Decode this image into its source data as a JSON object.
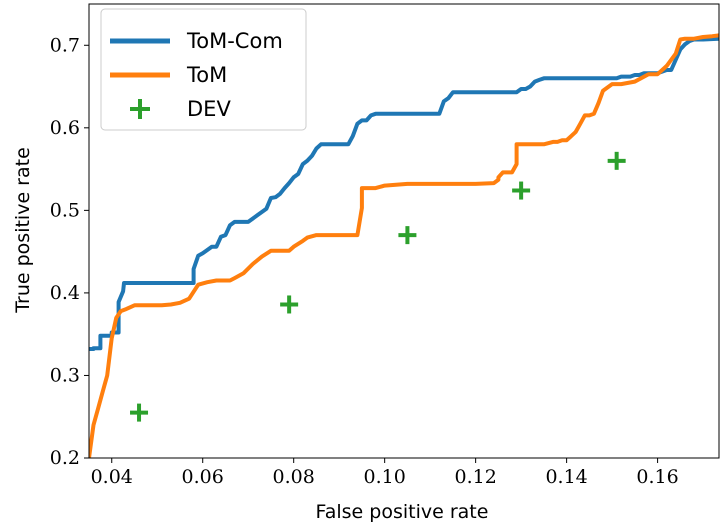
{
  "chart_data": {
    "type": "line",
    "xlabel": "False positive rate",
    "ylabel": "True positive rate",
    "xlim": [
      0.035,
      0.1735
    ],
    "ylim": [
      0.2,
      0.75
    ],
    "xticks": [
      0.04,
      0.06,
      0.08,
      0.1,
      0.12,
      0.14,
      0.16
    ],
    "xtick_labels": [
      "0.04",
      "0.06",
      "0.08",
      "0.10",
      "0.12",
      "0.14",
      "0.16"
    ],
    "yticks": [
      0.2,
      0.3,
      0.4,
      0.5,
      0.6,
      0.7
    ],
    "ytick_labels": [
      "0.2",
      "0.3",
      "0.4",
      "0.5",
      "0.6",
      "0.7"
    ],
    "legend_position": "top-left",
    "series": [
      {
        "name": "ToM-Com",
        "style": "line",
        "color": "#1f77b4",
        "x": [
          0.035,
          0.036,
          0.036,
          0.0375,
          0.0375,
          0.04,
          0.04,
          0.0415,
          0.0415,
          0.0425,
          0.0427,
          0.058,
          0.058,
          0.059,
          0.059,
          0.06,
          0.061,
          0.062,
          0.063,
          0.064,
          0.065,
          0.066,
          0.067,
          0.068,
          0.07,
          0.072,
          0.074,
          0.075,
          0.076,
          0.077,
          0.078,
          0.079,
          0.08,
          0.081,
          0.082,
          0.083,
          0.084,
          0.085,
          0.086,
          0.087,
          0.088,
          0.092,
          0.093,
          0.094,
          0.095,
          0.096,
          0.097,
          0.098,
          0.099,
          0.112,
          0.113,
          0.114,
          0.115,
          0.116,
          0.129,
          0.13,
          0.131,
          0.132,
          0.133,
          0.134,
          0.135,
          0.136,
          0.137,
          0.138,
          0.151,
          0.152,
          0.153,
          0.154,
          0.155,
          0.156,
          0.157,
          0.158,
          0.16,
          0.162,
          0.163,
          0.165,
          0.166,
          0.167,
          0.168,
          0.17,
          0.1735
        ],
        "y": [
          0.332,
          0.332,
          0.333,
          0.333,
          0.348,
          0.348,
          0.352,
          0.352,
          0.389,
          0.402,
          0.412,
          0.412,
          0.429,
          0.445,
          0.445,
          0.448,
          0.452,
          0.456,
          0.456,
          0.468,
          0.47,
          0.482,
          0.486,
          0.486,
          0.486,
          0.494,
          0.502,
          0.515,
          0.516,
          0.52,
          0.527,
          0.533,
          0.54,
          0.544,
          0.556,
          0.56,
          0.566,
          0.575,
          0.58,
          0.58,
          0.58,
          0.58,
          0.59,
          0.605,
          0.609,
          0.609,
          0.615,
          0.617,
          0.617,
          0.617,
          0.632,
          0.636,
          0.643,
          0.643,
          0.643,
          0.647,
          0.647,
          0.65,
          0.656,
          0.658,
          0.66,
          0.66,
          0.66,
          0.66,
          0.66,
          0.662,
          0.662,
          0.662,
          0.664,
          0.664,
          0.666,
          0.666,
          0.666,
          0.67,
          0.67,
          0.695,
          0.701,
          0.705,
          0.707,
          0.707,
          0.708
        ]
      },
      {
        "name": "ToM",
        "style": "line",
        "color": "#ff7f0e",
        "x": [
          0.035,
          0.036,
          0.037,
          0.038,
          0.039,
          0.04,
          0.041,
          0.042,
          0.043,
          0.045,
          0.047,
          0.051,
          0.053,
          0.055,
          0.057,
          0.059,
          0.061,
          0.063,
          0.065,
          0.066,
          0.067,
          0.069,
          0.071,
          0.073,
          0.075,
          0.077,
          0.078,
          0.079,
          0.08,
          0.082,
          0.083,
          0.085,
          0.09,
          0.094,
          0.095,
          0.095,
          0.098,
          0.1,
          0.105,
          0.11,
          0.115,
          0.12,
          0.124,
          0.125,
          0.125,
          0.126,
          0.128,
          0.129,
          0.129,
          0.13,
          0.135,
          0.137,
          0.138,
          0.139,
          0.14,
          0.141,
          0.142,
          0.143,
          0.144,
          0.145,
          0.146,
          0.147,
          0.148,
          0.15,
          0.152,
          0.155,
          0.158,
          0.16,
          0.162,
          0.164,
          0.165,
          0.166,
          0.168,
          0.17,
          0.172,
          0.1735
        ],
        "y": [
          0.2,
          0.24,
          0.26,
          0.28,
          0.3,
          0.345,
          0.37,
          0.378,
          0.38,
          0.385,
          0.385,
          0.385,
          0.386,
          0.388,
          0.393,
          0.41,
          0.413,
          0.415,
          0.415,
          0.415,
          0.418,
          0.424,
          0.435,
          0.444,
          0.451,
          0.451,
          0.451,
          0.451,
          0.456,
          0.463,
          0.467,
          0.47,
          0.47,
          0.47,
          0.503,
          0.527,
          0.527,
          0.53,
          0.532,
          0.532,
          0.532,
          0.532,
          0.533,
          0.537,
          0.54,
          0.546,
          0.546,
          0.556,
          0.58,
          0.58,
          0.58,
          0.583,
          0.583,
          0.585,
          0.585,
          0.59,
          0.595,
          0.605,
          0.615,
          0.615,
          0.617,
          0.63,
          0.645,
          0.653,
          0.653,
          0.656,
          0.665,
          0.665,
          0.675,
          0.69,
          0.707,
          0.708,
          0.708,
          0.71,
          0.711,
          0.712
        ]
      },
      {
        "name": "DEV",
        "style": "marker",
        "marker": "+",
        "color": "#2ca02c",
        "x": [
          0.046,
          0.079,
          0.105,
          0.13,
          0.151
        ],
        "y": [
          0.255,
          0.386,
          0.47,
          0.524,
          0.56
        ]
      }
    ]
  }
}
